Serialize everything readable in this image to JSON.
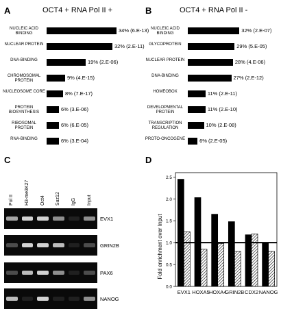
{
  "chart_data": [
    {
      "type": "bar",
      "panel": "A",
      "title": "OCT4 + RNA Pol II +",
      "categories": [
        "NUCLEIC ACID BINDING",
        "NUCLEAR PROTEIN",
        "DNA-BINDING",
        "CHROMOSOMAL PROTEIN",
        "NUCLEOSOME CORE",
        "PROTEIN BIOSYNTHESIS",
        "RIBOSOMAL PROTEIN",
        "RNA-BINDING"
      ],
      "values": [
        34,
        32,
        19,
        9,
        8,
        6,
        6,
        6
      ],
      "value_labels": [
        "34% (6.E-13)",
        "32% (2.E-11)",
        "19% (2.E-06)",
        "9% (4.E-15)",
        "8% (7.E-17)",
        "6% (3.E-06)",
        "6% (6.E-05)",
        "6% (3.E-04)"
      ]
    },
    {
      "type": "bar",
      "panel": "B",
      "title": "OCT4 + RNA Pol II -",
      "categories": [
        "NUCLEIC ACID BINDING",
        "GLYCOPROTEIN",
        "NUCLEAR PROTEIN",
        "DNA-BINDING",
        "HOMEOBOX",
        "DEVELOPMENTAL PROTEIN",
        "TRANSCRIPTION REGULATION",
        "PROTO-ONCOGENE"
      ],
      "values": [
        32,
        29,
        28,
        27,
        11,
        11,
        10,
        6
      ],
      "value_labels": [
        "32% (2.E-07)",
        "29% (5.E-05)",
        "28% (4.E-06)",
        "27% (2.E-12)",
        "11% (2.E-11)",
        "11% (2.E-10)",
        "10% (2.E-08)",
        "6% (2.E-05)"
      ]
    },
    {
      "type": "table",
      "panel": "C",
      "columns": [
        "Pol II",
        "H3-me3K27",
        "Oct4",
        "Suz12",
        "IgG",
        "Input"
      ],
      "rows": [
        "EVX1",
        "GRIN2B",
        "PAX6",
        "NANOG"
      ],
      "band_intensity": [
        [
          0.7,
          0.9,
          0.9,
          0.6,
          0.1,
          0.6
        ],
        [
          0.3,
          0.9,
          0.9,
          0.8,
          0.1,
          0.3
        ],
        [
          0.3,
          0.8,
          0.9,
          0.6,
          0.1,
          0.3
        ],
        [
          0.8,
          0.1,
          0.9,
          0.1,
          0.1,
          0.6
        ]
      ]
    },
    {
      "type": "bar",
      "panel": "D",
      "ylabel": "Fold enrichment over Input",
      "categories": [
        "EVX1",
        "HOXA5",
        "HOXA4",
        "GRIN2B",
        "CDX2",
        "NANOG"
      ],
      "series": [
        {
          "values": [
            2.45,
            2.03,
            1.65,
            1.48,
            1.18,
            1.0
          ],
          "fill": "solid"
        },
        {
          "values": [
            1.25,
            0.85,
            0.98,
            0.8,
            1.2,
            0.8
          ],
          "fill": "hatched"
        }
      ],
      "ylim": [
        0,
        2.6
      ],
      "yticks": [
        0,
        0.5,
        1.0,
        1.5,
        2.0,
        2.5
      ],
      "reference_line": 1.0
    }
  ]
}
